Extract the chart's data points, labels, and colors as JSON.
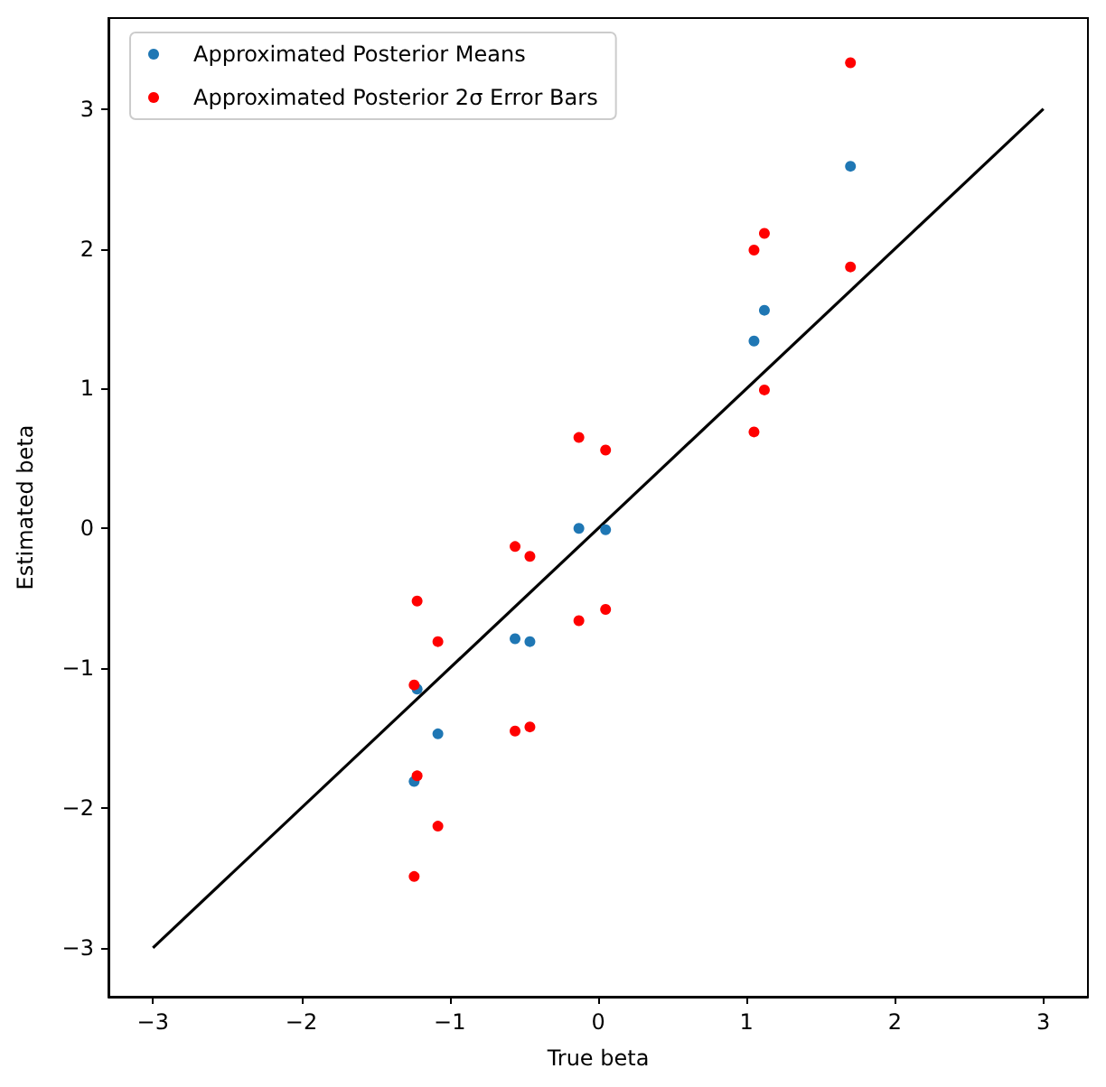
{
  "chart_data": {
    "type": "scatter",
    "xlabel": "True beta",
    "ylabel": "Estimated beta",
    "xlim": [
      -3.3,
      3.3
    ],
    "ylim": [
      -3.35,
      3.65
    ],
    "xticks": [
      -3,
      -2,
      -1,
      0,
      1,
      2,
      3
    ],
    "yticks": [
      -3,
      -2,
      -1,
      0,
      1,
      2,
      3
    ],
    "grid": false,
    "legend": "top left",
    "marker": "circle",
    "series": [
      {
        "name": "Approximated Posterior Means",
        "color": "#1f77b4",
        "x": [
          -1.24,
          -1.22,
          -1.08,
          -0.56,
          -0.46,
          -0.13,
          0.05,
          1.05,
          1.12,
          1.7
        ],
        "values": [
          -1.81,
          -1.15,
          -1.47,
          -0.79,
          -0.81,
          0.0,
          -0.01,
          1.34,
          1.56,
          2.59
        ]
      },
      {
        "name": "Approximated Posterior 2σ Error Bars",
        "color": "#ff0000",
        "x": [
          -1.24,
          -1.24,
          -1.22,
          -1.22,
          -1.08,
          -1.08,
          -0.56,
          -0.56,
          -0.46,
          -0.46,
          -0.13,
          -0.13,
          0.05,
          0.05,
          1.05,
          1.05,
          1.12,
          1.12,
          1.7,
          1.7
        ],
        "values": [
          -1.12,
          -2.49,
          -0.52,
          -1.77,
          -0.81,
          -2.13,
          -0.13,
          -1.45,
          -0.2,
          -1.42,
          0.65,
          -0.66,
          0.56,
          -0.58,
          1.99,
          0.69,
          2.11,
          0.99,
          3.33,
          1.87
        ]
      },
      {
        "type": "line",
        "marker": "none",
        "color": "#000000",
        "x": [
          -3,
          3
        ],
        "values": [
          -3,
          3
        ]
      }
    ]
  }
}
